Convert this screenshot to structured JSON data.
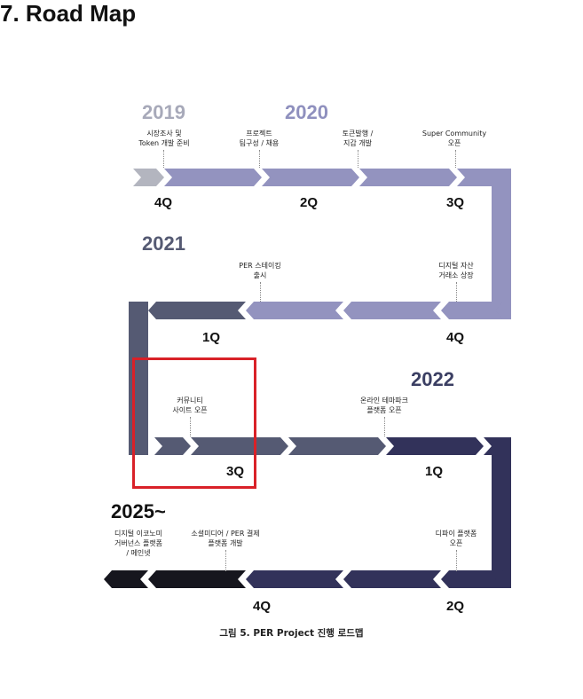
{
  "title": "7. Road Map",
  "caption": "그림 5. PER Project 진행 로드맵",
  "colors": {
    "gray": "#b3b5bf",
    "lavender": "#9393bf",
    "slate": "#555a73",
    "navy": "#32325a",
    "black": "#16161e",
    "highlight": "#d92128",
    "year_2019": "#a7a9b9",
    "year_2020": "#8f90be",
    "year_2021": "#555a73",
    "year_2022": "#3b3f63",
    "year_2025": "#111111"
  },
  "years": [
    "2019",
    "2020",
    "2021",
    "2022",
    "2025~"
  ],
  "quarters": [
    "4Q",
    "2Q",
    "3Q",
    "1Q",
    "4Q",
    "3Q",
    "1Q",
    "4Q",
    "2Q"
  ],
  "milestones": [
    {
      "lines": [
        "시장조사 및",
        "Token 개발 준비"
      ]
    },
    {
      "lines": [
        "프로젝트",
        "팀구성 / 채용"
      ]
    },
    {
      "lines": [
        "토큰발행 /",
        "지갑 개발"
      ]
    },
    {
      "lines": [
        "Super Community",
        "오픈"
      ]
    },
    {
      "lines": [
        "PER 스테이킹",
        "출시"
      ]
    },
    {
      "lines": [
        "디지털 자산",
        "거래소 상장"
      ]
    },
    {
      "lines": [
        "커뮤니티",
        "사이트 오픈"
      ]
    },
    {
      "lines": [
        "온라인 테마파크",
        "플랫폼 오픈"
      ]
    },
    {
      "lines": [
        "디지털 이코노미",
        "거버넌스 플랫폼",
        "/ 메인넷"
      ]
    },
    {
      "lines": [
        "소셜미디어 / PER 결제",
        "플랫폼 개발"
      ]
    },
    {
      "lines": [
        "디파이 플랫폼",
        "오픈"
      ]
    }
  ]
}
